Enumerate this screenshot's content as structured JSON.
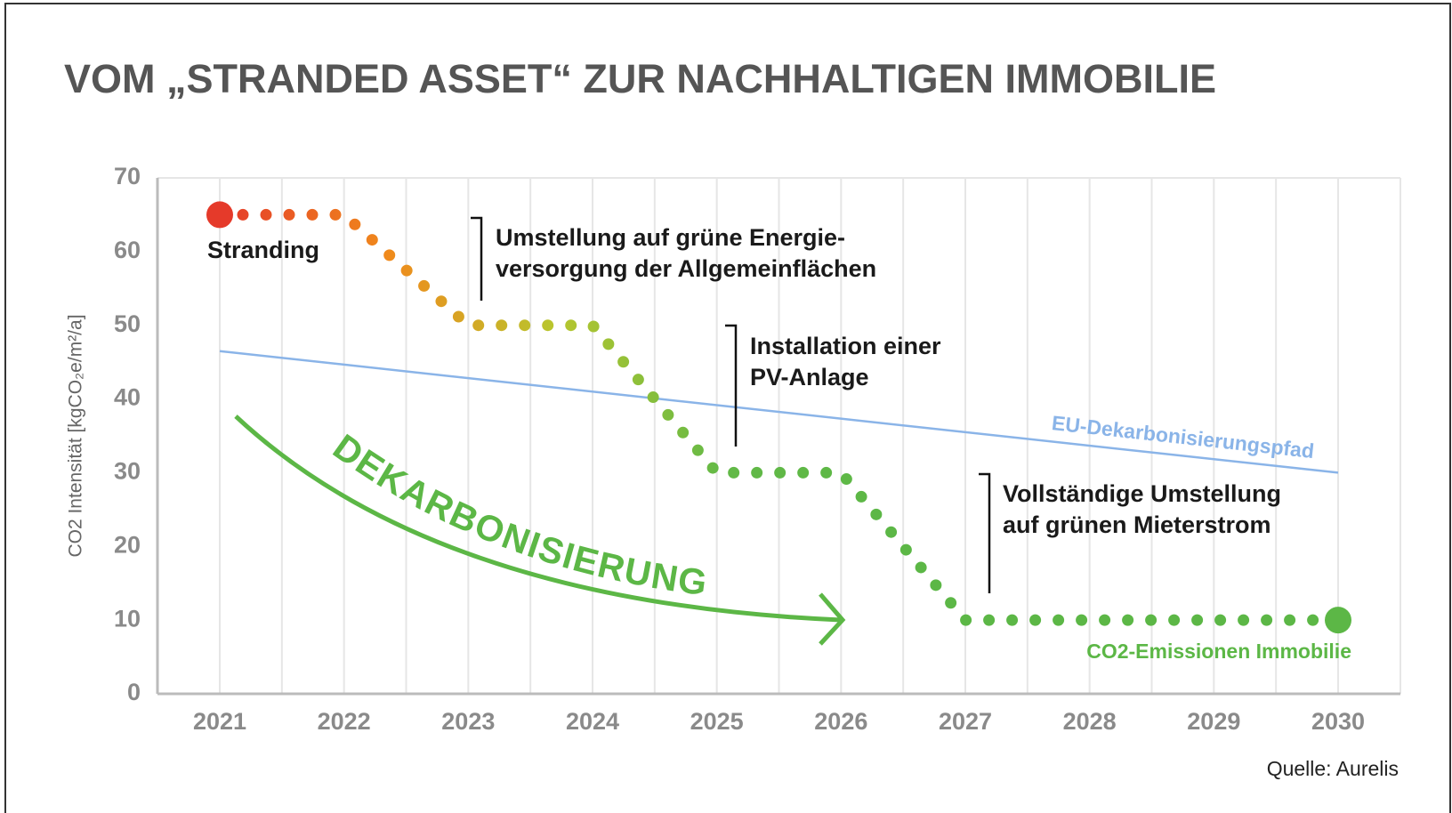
{
  "chart_data": {
    "type": "line",
    "title": "VOM „STRANDED ASSET“ ZUR NACHHALTIGEN IMMOBILIE",
    "y_label": "CO2 Intensität [kgCO₂e/m²/a]",
    "xlim": [
      2021,
      2030
    ],
    "xticks": [
      2021,
      2022,
      2023,
      2024,
      2025,
      2026,
      2027,
      2028,
      2029,
      2030
    ],
    "ylim": [
      0,
      70
    ],
    "yticks": [
      0,
      10,
      20,
      30,
      40,
      50,
      60,
      70
    ],
    "grid": true,
    "series": [
      {
        "name": "CO2-Emissionen Immobilie",
        "color": "#5cb746",
        "gradient": [
          "#e53a2a",
          "#f08a1c",
          "#b8c62e",
          "#62b947",
          "#5cb746"
        ],
        "x": [
          2021,
          2022,
          2023,
          2024,
          2025,
          2026,
          2027,
          2030
        ],
        "values": [
          65,
          65,
          50,
          50,
          30,
          30,
          10,
          10
        ]
      },
      {
        "name": "EU-Dekarbonisierungspfad",
        "color": "#8ab4e8",
        "x": [
          2021,
          2030
        ],
        "values": [
          46.5,
          30
        ]
      }
    ],
    "annotations": [
      {
        "lines": [
          "Stranding"
        ]
      },
      {
        "lines": [
          "Umstellung auf grüne Energie-",
          "versorgung der Allgemeinflächen"
        ]
      },
      {
        "lines": [
          "Installation einer",
          "PV-Anlage"
        ]
      },
      {
        "lines": [
          "Vollständige Umstellung",
          "auf grünen Mieterstrom"
        ]
      }
    ],
    "arrow_label": "DEKARBONISIERUNG",
    "source": "Quelle: Aurelis"
  }
}
